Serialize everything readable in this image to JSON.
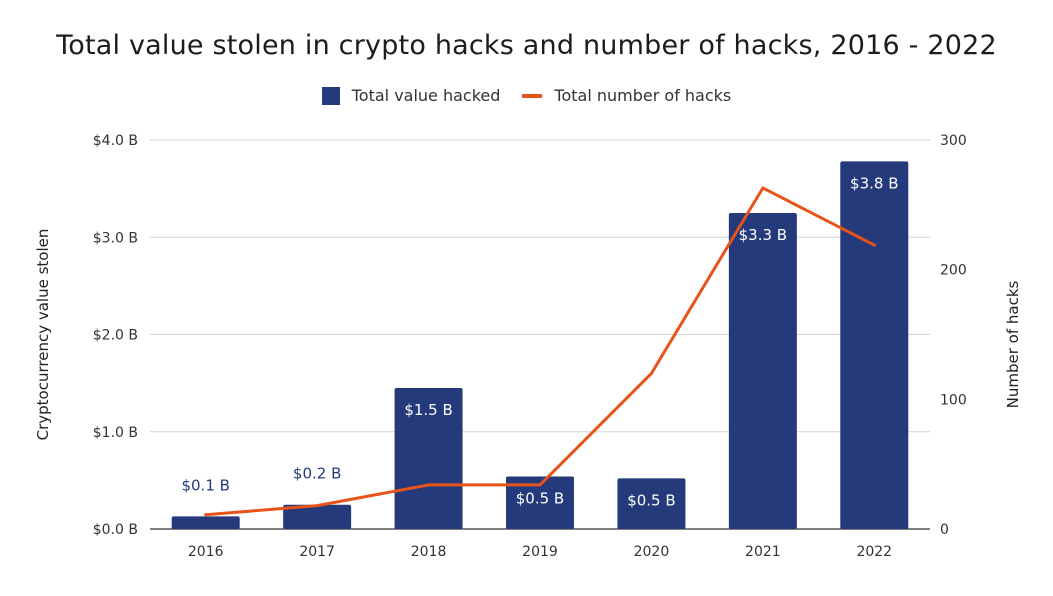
{
  "chart_data": {
    "type": "bar",
    "title": "Total value stolen in crypto hacks and number of hacks, 2016 - 2022",
    "categories": [
      "2016",
      "2017",
      "2018",
      "2019",
      "2020",
      "2021",
      "2022"
    ],
    "series": [
      {
        "name": "Total value hacked",
        "type": "bar",
        "axis": "left",
        "color": "#243a7a",
        "values": [
          0.13,
          0.25,
          1.45,
          0.54,
          0.52,
          3.25,
          3.78
        ],
        "labels": [
          "$0.1 B",
          "$0.2 B",
          "$1.5 B",
          "$0.5 B",
          "$0.5 B",
          "$3.3 B",
          "$3.8 B"
        ]
      },
      {
        "name": "Total number of hacks",
        "type": "line",
        "axis": "right",
        "color": "#e8531a",
        "values": [
          11,
          18,
          34,
          34,
          120,
          263,
          219
        ]
      }
    ],
    "ylabel": "Cryptocurrency value stolen",
    "y2label": "Number of hacks",
    "ylim": [
      0,
      4
    ],
    "y2lim": [
      0,
      300
    ],
    "yticks": [
      "$0.0 B",
      "$1.0 B",
      "$2.0 B",
      "$3.0 B",
      "$4.0 B"
    ],
    "y2ticks": [
      "0",
      "100",
      "200",
      "300"
    ],
    "legend_position": "top-center",
    "grid": true
  }
}
